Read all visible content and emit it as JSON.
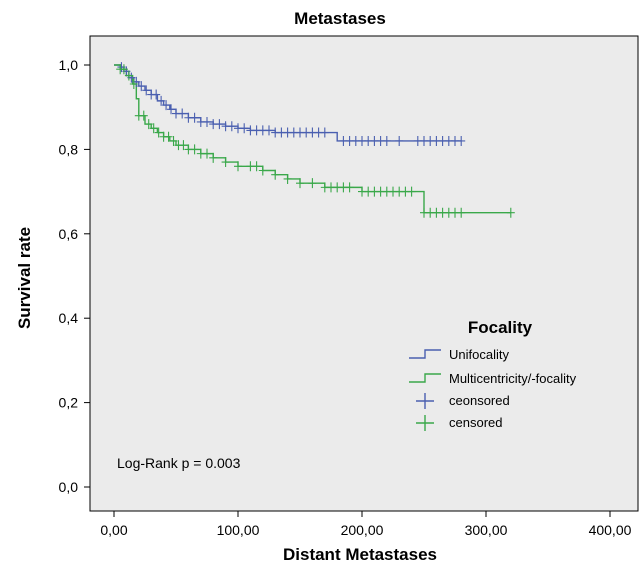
{
  "chart_data": {
    "type": "line",
    "title": "Metastases",
    "xlabel": "Distant Metastases",
    "ylabel": "Survival rate",
    "xlim": [
      0,
      400
    ],
    "ylim": [
      0,
      1
    ],
    "x_ticks": [
      "0,00",
      "100,00",
      "200,00",
      "300,00",
      "400,00"
    ],
    "y_ticks": [
      "0,0",
      "0,2",
      "0,4",
      "0,6",
      "0,8",
      "1,0"
    ],
    "grid": false,
    "background": "#ebebeb",
    "legend": {
      "title": "Focality",
      "placement": "center-right",
      "entries": [
        "Unifocality",
        "Multicentricity/-focality",
        "ceonsored",
        "censored"
      ]
    },
    "annotation": "Log-Rank p = 0.003",
    "series": [
      {
        "name": "Unifocality",
        "color": "#4a5fb0",
        "x": [
          0,
          5,
          8,
          12,
          16,
          20,
          25,
          30,
          35,
          40,
          45,
          50,
          60,
          70,
          80,
          90,
          100,
          110,
          130,
          150,
          175,
          180,
          200,
          220,
          250,
          280
        ],
        "y": [
          1.0,
          0.995,
          0.985,
          0.97,
          0.96,
          0.95,
          0.94,
          0.93,
          0.915,
          0.905,
          0.895,
          0.885,
          0.875,
          0.865,
          0.86,
          0.855,
          0.85,
          0.845,
          0.84,
          0.84,
          0.84,
          0.82,
          0.82,
          0.82,
          0.82,
          0.82
        ],
        "censor_x": [
          6,
          10,
          14,
          18,
          22,
          26,
          30,
          34,
          38,
          42,
          46,
          50,
          55,
          60,
          65,
          70,
          75,
          80,
          85,
          90,
          95,
          100,
          105,
          110,
          115,
          120,
          125,
          130,
          135,
          140,
          145,
          150,
          155,
          160,
          165,
          170,
          185,
          190,
          195,
          200,
          205,
          210,
          215,
          220,
          230,
          245,
          250,
          255,
          260,
          265,
          270,
          275,
          280
        ]
      },
      {
        "name": "Multicentricity/-focality",
        "color": "#3aa84a",
        "x": [
          0,
          5,
          10,
          15,
          18,
          20,
          25,
          30,
          35,
          40,
          45,
          50,
          60,
          70,
          80,
          90,
          100,
          120,
          130,
          140,
          150,
          170,
          180,
          190,
          200,
          210,
          245,
          250,
          300,
          320
        ],
        "y": [
          1.0,
          0.99,
          0.975,
          0.955,
          0.92,
          0.88,
          0.86,
          0.85,
          0.84,
          0.83,
          0.82,
          0.81,
          0.8,
          0.79,
          0.78,
          0.77,
          0.76,
          0.75,
          0.74,
          0.73,
          0.72,
          0.71,
          0.71,
          0.71,
          0.7,
          0.7,
          0.7,
          0.65,
          0.65,
          0.65
        ],
        "censor_x": [
          5,
          8,
          12,
          16,
          20,
          24,
          28,
          32,
          36,
          40,
          44,
          48,
          52,
          56,
          60,
          65,
          70,
          75,
          80,
          90,
          100,
          110,
          115,
          120,
          130,
          140,
          150,
          160,
          170,
          175,
          180,
          185,
          190,
          200,
          205,
          210,
          215,
          220,
          225,
          230,
          235,
          240,
          250,
          255,
          260,
          265,
          270,
          275,
          280,
          320
        ]
      }
    ]
  }
}
